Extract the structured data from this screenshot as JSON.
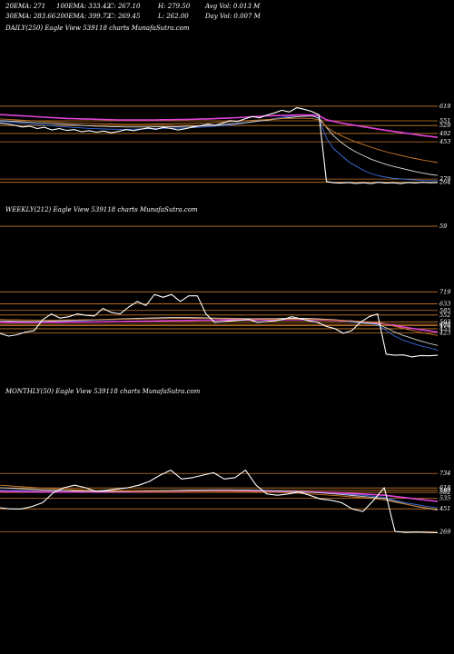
{
  "header": {
    "row1": [
      "20EMA: 271",
      "100EMA: 333.42",
      "C: 267.10",
      "H: 279.50",
      "Avg Vol: 0.013 M"
    ],
    "row2": [
      "30EMA: 283.66",
      "200EMA: 399.72",
      "C: 269.45",
      "L: 262.00",
      "Day Vol: 0.007 M"
    ]
  },
  "colors": {
    "background": "#000000",
    "price": "#ffffff",
    "hline": "#c97a2a",
    "ema_blue": "#3b6fe0",
    "ema_pink": "#e044d8",
    "ema_white": "#d8d8d8",
    "ema_orange": "#c97a2a"
  },
  "chart_data": [
    {
      "type": "line",
      "title": "DAILY(250) Eagle   View   539118   charts MunafaSutra.com",
      "y_labels": [
        "619",
        "59",
        "551",
        "529",
        "492",
        "453",
        "279",
        "264"
      ],
      "ylim": [
        250,
        640
      ],
      "series": [
        {
          "role": "price",
          "color": "#ffffff",
          "values": [
            540,
            536,
            530,
            522,
            526,
            515,
            521,
            508,
            515,
            506,
            510,
            500,
            505,
            498,
            503,
            495,
            502,
            510,
            505,
            512,
            518,
            511,
            520,
            516,
            508,
            514,
            522,
            528,
            535,
            530,
            540,
            552,
            548,
            560,
            571,
            565,
            578,
            588,
            600,
            592,
            612,
            605,
            595,
            579,
            268,
            262,
            260,
            263,
            259,
            262,
            258,
            264,
            260,
            262,
            258,
            263,
            261,
            264,
            262,
            263
          ]
        },
        {
          "role": "ema",
          "color": "#3b6fe0",
          "values": [
            548,
            546,
            543,
            540,
            537,
            534,
            531,
            528,
            525,
            522,
            520,
            518,
            516,
            514,
            513,
            512,
            511,
            511,
            512,
            513,
            514,
            515,
            516,
            517,
            517,
            518,
            519,
            521,
            523,
            525,
            528,
            532,
            536,
            541,
            546,
            551,
            556,
            561,
            567,
            572,
            576,
            578,
            577,
            560,
            470,
            420,
            390,
            360,
            340,
            320,
            305,
            295,
            288,
            283,
            280,
            277,
            275,
            273,
            272,
            271
          ]
        },
        {
          "role": "ema",
          "color": "#d8d8d8",
          "values": [
            552,
            550,
            548,
            546,
            544,
            542,
            540,
            538,
            536,
            534,
            532,
            530,
            528,
            526,
            525,
            524,
            523,
            522,
            522,
            522,
            522,
            523,
            523,
            524,
            524,
            525,
            526,
            527,
            529,
            531,
            533,
            536,
            539,
            542,
            546,
            550,
            554,
            558,
            562,
            566,
            570,
            572,
            573,
            565,
            520,
            480,
            450,
            425,
            405,
            388,
            372,
            360,
            348,
            338,
            330,
            322,
            314,
            307,
            301,
            296
          ]
        },
        {
          "role": "ema",
          "color": "#e044d8",
          "values": [
            580,
            578,
            576,
            574,
            572,
            570,
            568,
            566,
            564,
            562,
            561,
            560,
            559,
            558,
            557,
            556,
            555,
            555,
            555,
            555,
            555,
            555,
            556,
            556,
            557,
            557,
            558,
            559,
            560,
            561,
            563,
            564,
            566,
            568,
            570,
            572,
            574,
            575,
            576,
            577,
            578,
            578,
            578,
            575,
            556,
            548,
            541,
            535,
            529,
            523,
            518,
            512,
            507,
            502,
            497,
            492,
            487,
            482,
            478,
            474
          ]
        },
        {
          "role": "ema",
          "color": "#c97a2a",
          "values": [
            560,
            558,
            556,
            554,
            552,
            550,
            548,
            546,
            544,
            542,
            541,
            540,
            539,
            538,
            537,
            536,
            535,
            535,
            535,
            535,
            535,
            536,
            536,
            537,
            538,
            538,
            539,
            540,
            541,
            543,
            545,
            547,
            549,
            551,
            553,
            555,
            557,
            559,
            561,
            562,
            563,
            563,
            562,
            556,
            522,
            500,
            482,
            466,
            452,
            440,
            428,
            417,
            407,
            398,
            390,
            382,
            375,
            368,
            362,
            356
          ]
        }
      ]
    },
    {
      "type": "line",
      "title": "WEEKLY(212) Eagle   View   539118   charts MunafaSutra.com",
      "y_labels": [
        "719",
        "633",
        "585",
        "552",
        "503",
        "485",
        "453",
        "423",
        "476"
      ],
      "ylim": [
        230,
        780
      ],
      "series": [
        {
          "role": "price",
          "color": "#ffffff",
          "values": [
            420,
            400,
            410,
            430,
            440,
            520,
            560,
            530,
            540,
            560,
            550,
            545,
            600,
            570,
            560,
            610,
            650,
            620,
            700,
            680,
            700,
            650,
            690,
            690,
            560,
            500,
            505,
            510,
            515,
            520,
            500,
            505,
            510,
            520,
            540,
            525,
            510,
            500,
            470,
            455,
            420,
            440,
            500,
            540,
            560,
            270,
            262,
            265,
            250,
            260,
            258,
            262
          ]
        },
        {
          "role": "ema",
          "color": "#3b6fe0",
          "values": [
            500,
            498,
            497,
            497,
            498,
            500,
            503,
            505,
            507,
            510,
            512,
            514,
            517,
            519,
            521,
            523,
            526,
            528,
            530,
            532,
            533,
            533,
            532,
            531,
            530,
            528,
            526,
            524,
            522,
            521,
            521,
            521,
            522,
            523,
            524,
            524,
            523,
            521,
            518,
            514,
            508,
            502,
            496,
            490,
            482,
            440,
            400,
            370,
            350,
            330,
            315,
            300
          ]
        },
        {
          "role": "ema",
          "color": "#e044d8",
          "values": [
            500,
            499,
            499,
            499,
            499,
            500,
            500,
            500,
            501,
            501,
            502,
            502,
            503,
            504,
            505,
            506,
            507,
            508,
            509,
            510,
            511,
            512,
            513,
            514,
            515,
            515,
            516,
            516,
            517,
            517,
            517,
            517,
            518,
            518,
            518,
            518,
            518,
            517,
            516,
            514,
            511,
            508,
            504,
            500,
            496,
            486,
            476,
            466,
            456,
            447,
            438,
            430
          ]
        },
        {
          "role": "ema",
          "color": "#d8d8d8",
          "values": [
            510,
            508,
            507,
            506,
            506,
            507,
            508,
            510,
            512,
            514,
            516,
            518,
            520,
            522,
            524,
            526,
            528,
            530,
            532,
            533,
            534,
            534,
            534,
            533,
            532,
            530,
            529,
            528,
            527,
            526,
            526,
            526,
            526,
            527,
            528,
            528,
            527,
            525,
            522,
            518,
            512,
            506,
            500,
            494,
            487,
            460,
            430,
            405,
            385,
            365,
            348,
            333
          ]
        },
        {
          "role": "ema",
          "color": "#c97a2a",
          "values": [
            520,
            519,
            518,
            517,
            516,
            516,
            516,
            516,
            517,
            517,
            518,
            518,
            519,
            520,
            521,
            522,
            523,
            524,
            525,
            526,
            527,
            527,
            527,
            527,
            527,
            526,
            526,
            525,
            524,
            523,
            523,
            522,
            522,
            522,
            522,
            522,
            521,
            520,
            518,
            516,
            513,
            510,
            506,
            502,
            498,
            485,
            470,
            455,
            441,
            428,
            416,
            405
          ]
        }
      ]
    },
    {
      "type": "line",
      "title": "MONTHLY(50) Eagle   View   539118   charts MunafaSutra.com",
      "y_labels": [
        "734",
        "618",
        "598",
        "582",
        "535",
        "451",
        "269"
      ],
      "ylim": [
        220,
        830
      ],
      "series": [
        {
          "role": "price",
          "color": "#ffffff",
          "values": [
            460,
            450,
            450,
            470,
            500,
            580,
            620,
            640,
            620,
            590,
            600,
            610,
            620,
            640,
            670,
            720,
            760,
            690,
            700,
            720,
            740,
            690,
            700,
            760,
            640,
            570,
            560,
            570,
            585,
            560,
            530,
            520,
            500,
            450,
            430,
            520,
            620,
            270,
            262,
            265,
            262,
            260
          ]
        },
        {
          "role": "ema",
          "color": "#3b6fe0",
          "values": [
            600,
            598,
            596,
            594,
            592,
            590,
            589,
            588,
            587,
            587,
            588,
            589,
            590,
            592,
            594,
            596,
            598,
            599,
            600,
            601,
            602,
            602,
            602,
            601,
            600,
            598,
            596,
            593,
            590,
            586,
            582,
            577,
            572,
            566,
            560,
            552,
            544,
            520,
            500,
            485,
            470,
            458
          ]
        },
        {
          "role": "ema",
          "color": "#e044d8",
          "values": [
            590,
            589,
            588,
            587,
            586,
            585,
            585,
            585,
            585,
            585,
            585,
            586,
            587,
            588,
            589,
            590,
            591,
            592,
            593,
            594,
            594,
            595,
            595,
            595,
            594,
            593,
            592,
            590,
            588,
            586,
            584,
            581,
            578,
            574,
            570,
            565,
            560,
            550,
            540,
            530,
            520,
            511
          ]
        },
        {
          "role": "ema",
          "color": "#d8d8d8",
          "values": [
            620,
            616,
            612,
            608,
            604,
            600,
            597,
            594,
            592,
            591,
            590,
            590,
            591,
            592,
            594,
            596,
            598,
            600,
            601,
            602,
            603,
            603,
            602,
            601,
            600,
            598,
            595,
            592,
            588,
            584,
            579,
            573,
            566,
            558,
            550,
            542,
            532,
            510,
            490,
            470,
            455,
            440
          ]
        },
        {
          "role": "ema",
          "color": "#c97a2a",
          "values": [
            640,
            634,
            628,
            622,
            617,
            612,
            608,
            604,
            601,
            598,
            596,
            594,
            593,
            592,
            592,
            592,
            592,
            592,
            592,
            592,
            592,
            591,
            590,
            589,
            587,
            585,
            582,
            579,
            575,
            571,
            566,
            560,
            554,
            547,
            540,
            532,
            523,
            505,
            488,
            472,
            458,
            445
          ]
        }
      ]
    }
  ]
}
